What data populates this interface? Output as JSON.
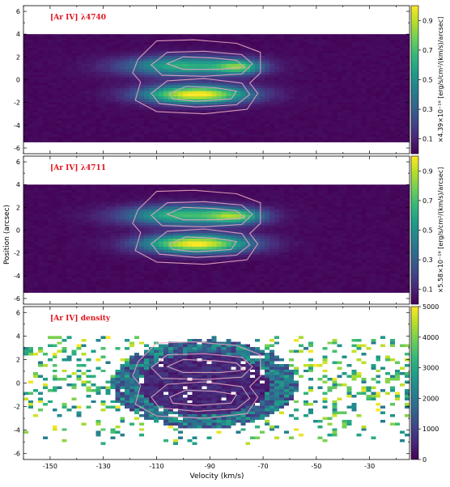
{
  "figure": {
    "ylabel": "Position (arcsec)",
    "xlabel": "Velocity (km/s)"
  },
  "colors": {
    "viridis": [
      "#440154",
      "#482878",
      "#3e4989",
      "#31688e",
      "#26828e",
      "#1f9e89",
      "#35b779",
      "#6ece58",
      "#b5de2b",
      "#fde725"
    ],
    "contour": "#e8a6c0",
    "title": "#e0141e"
  },
  "chart_data": [
    {
      "type": "heatmap",
      "title": "[Ar IV] λ4740",
      "xlim": [
        -160,
        -15
      ],
      "ylim": [
        -6.5,
        6.5
      ],
      "data_extent": {
        "x": [
          -160,
          -15
        ],
        "y": [
          -5.5,
          4.0
        ]
      },
      "xticks": [
        -150,
        -130,
        -110,
        -90,
        -70,
        -50,
        -30
      ],
      "yticks": [
        -6,
        -4,
        -2,
        0,
        2,
        4,
        6
      ],
      "xticklabels_shown": false,
      "blobs": [
        {
          "x": -95,
          "y": -1.3,
          "peak": 1.0,
          "sx": 14,
          "sy": 0.55
        },
        {
          "x": -100,
          "y": 1.2,
          "peak": 0.62,
          "sx": 16,
          "sy": 0.6
        },
        {
          "x": -79,
          "y": 1.1,
          "peak": 0.55,
          "sx": 6,
          "sy": 0.45
        }
      ],
      "colorbar": {
        "ticks": [
          0.1,
          0.3,
          0.5,
          0.7,
          0.9
        ],
        "tick_labels": [
          "0.1",
          "0.3",
          "0.5",
          "0.7",
          "0.9"
        ],
        "range": [
          0.0,
          1.0
        ],
        "label": "×4.39×10⁻¹⁶ [erg/s/cm²/(km/s)/arcsec]"
      }
    },
    {
      "type": "heatmap",
      "title": "[Ar IV] λ4711",
      "xlim": [
        -160,
        -15
      ],
      "ylim": [
        -6.5,
        6.5
      ],
      "data_extent": {
        "x": [
          -160,
          -15
        ],
        "y": [
          -5.5,
          4.0
        ]
      },
      "xticks": [
        -150,
        -130,
        -110,
        -90,
        -70,
        -50,
        -30
      ],
      "yticks": [
        -6,
        -4,
        -2,
        0,
        2,
        4,
        6
      ],
      "xticklabels_shown": false,
      "blobs": [
        {
          "x": -95,
          "y": -1.2,
          "peak": 1.0,
          "sx": 14,
          "sy": 0.55
        },
        {
          "x": -100,
          "y": 1.3,
          "peak": 0.66,
          "sx": 16,
          "sy": 0.6
        },
        {
          "x": -80,
          "y": 1.2,
          "peak": 0.55,
          "sx": 7,
          "sy": 0.45
        }
      ],
      "colorbar": {
        "ticks": [
          0.1,
          0.3,
          0.5,
          0.7,
          0.9
        ],
        "tick_labels": [
          "0.1",
          "0.3",
          "0.5",
          "0.7",
          "0.9"
        ],
        "range": [
          0.0,
          1.0
        ],
        "label": "×5.58×10⁻¹⁶ [erg/s/cm²/(km/s)/arcsec]"
      }
    },
    {
      "type": "heatmap",
      "title": "[Ar IV] density",
      "xlim": [
        -160,
        -15
      ],
      "ylim": [
        -6.5,
        6.5
      ],
      "data_extent": {
        "x": [
          -160,
          -15
        ],
        "y": [
          -5.5,
          4.0
        ]
      },
      "xticks": [
        -150,
        -130,
        -110,
        -90,
        -70,
        -50,
        -30
      ],
      "yticks": [
        -6,
        -4,
        -2,
        0,
        2,
        4,
        6
      ],
      "xticklabels_shown": true,
      "colorbar": {
        "ticks": [
          0,
          1000,
          2000,
          3000,
          4000,
          5000
        ],
        "tick_labels": [
          "0",
          "1000",
          "2000",
          "3000",
          "4000",
          "5000"
        ],
        "range": [
          0,
          5000
        ],
        "label": ""
      }
    }
  ]
}
